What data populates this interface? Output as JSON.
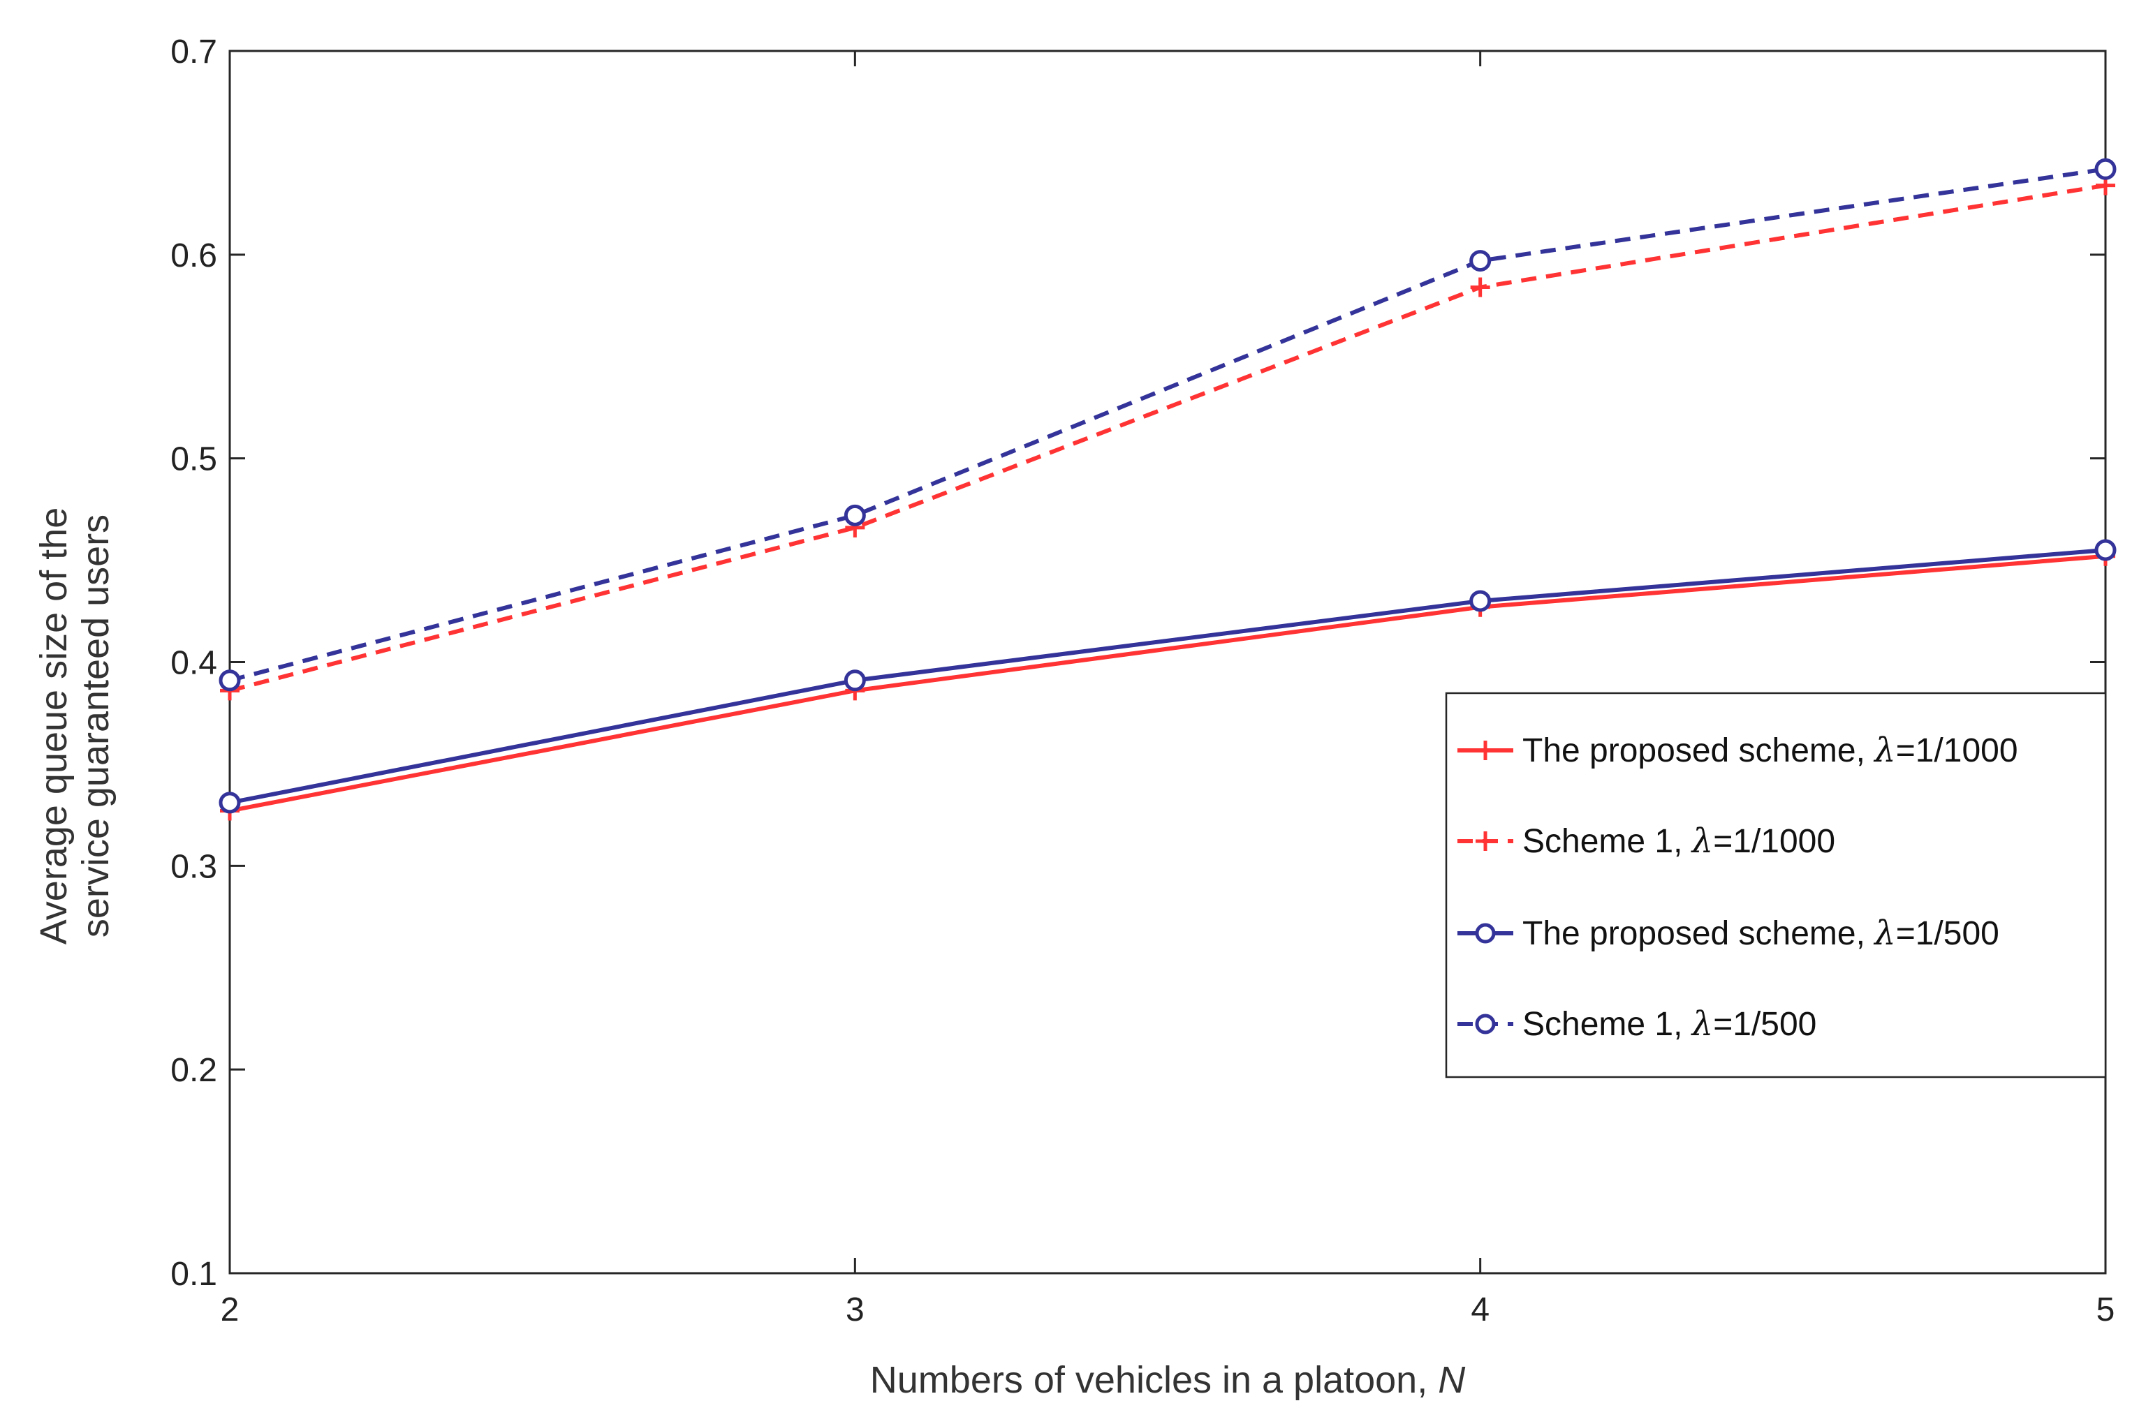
{
  "chart_data": {
    "type": "line",
    "xlabel": "Numbers of vehicles in a platoon, ",
    "xlabel_var": "N",
    "ylabel_lines": [
      "Average queue size of the",
      "service guaranteed users"
    ],
    "x": [
      2,
      3,
      4,
      5
    ],
    "xlim": [
      2,
      5
    ],
    "ylim": [
      0.1,
      0.7
    ],
    "xticks": [
      2,
      3,
      4,
      5
    ],
    "yticks": [
      0.1,
      0.2,
      0.3,
      0.4,
      0.5,
      0.6,
      0.7
    ],
    "ytick_labels": [
      "0.1",
      "0.2",
      "0.3",
      "0.4",
      "0.5",
      "0.6",
      "0.7"
    ],
    "grid": false,
    "legend_position": "right-middle",
    "series": [
      {
        "name": "The proposed scheme, ",
        "lambda_label": "λ",
        "lambda_value": "=1/1000",
        "values": [
          0.327,
          0.386,
          0.427,
          0.452
        ],
        "color": "#ff3333",
        "line_style": "solid",
        "marker": "plus"
      },
      {
        "name": "Scheme 1, ",
        "lambda_label": "λ",
        "lambda_value": "=1/1000",
        "values": [
          0.386,
          0.466,
          0.584,
          0.634
        ],
        "color": "#ff3333",
        "line_style": "dashed",
        "marker": "plus"
      },
      {
        "name": "The proposed scheme, ",
        "lambda_label": "λ",
        "lambda_value": "=1/500",
        "values": [
          0.331,
          0.391,
          0.43,
          0.455
        ],
        "color": "#33339a",
        "line_style": "solid",
        "marker": "circle"
      },
      {
        "name": "Scheme 1, ",
        "lambda_label": "λ",
        "lambda_value": "=1/500",
        "values": [
          0.391,
          0.472,
          0.597,
          0.642
        ],
        "color": "#33339a",
        "line_style": "dashed",
        "marker": "circle"
      }
    ]
  }
}
